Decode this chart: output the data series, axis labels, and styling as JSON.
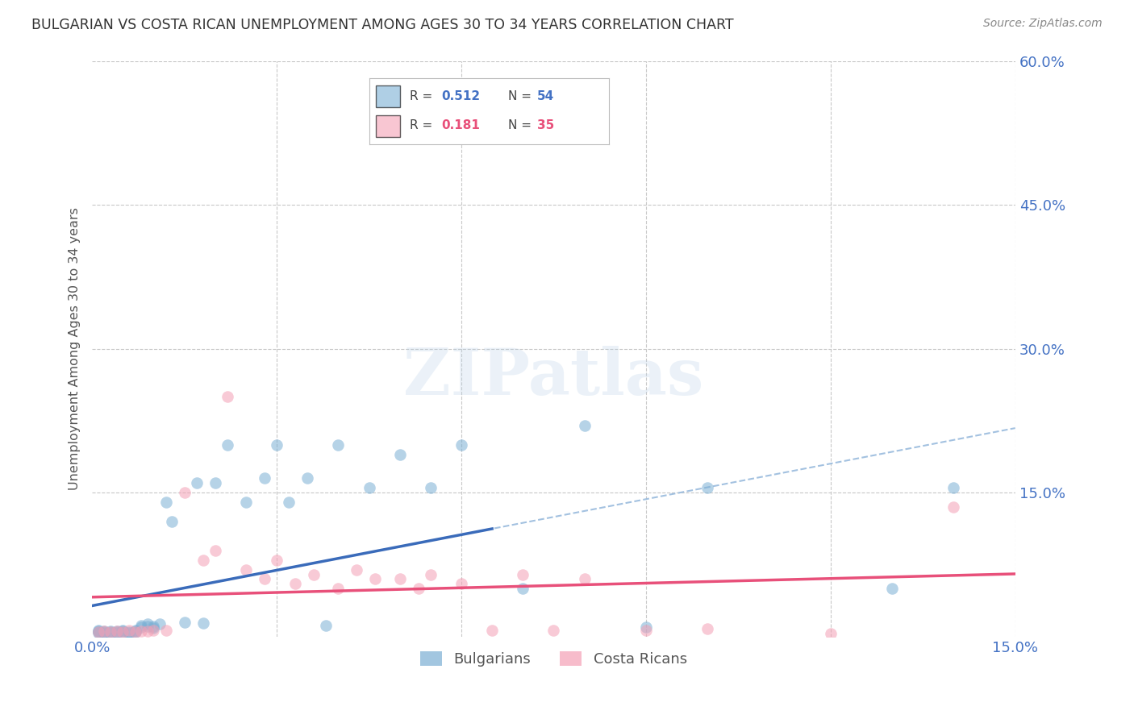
{
  "title": "BULGARIAN VS COSTA RICAN UNEMPLOYMENT AMONG AGES 30 TO 34 YEARS CORRELATION CHART",
  "source": "Source: ZipAtlas.com",
  "ylabel": "Unemployment Among Ages 30 to 34 years",
  "xlim": [
    0.0,
    0.15
  ],
  "ylim": [
    0.0,
    0.6
  ],
  "bg_color": "#ffffff",
  "grid_color": "#c8c8c8",
  "watermark_text": "ZIPatlas",
  "blue_scatter_color": "#7bafd4",
  "pink_scatter_color": "#f4a0b5",
  "blue_line_color": "#3a6bba",
  "pink_line_color": "#e8507a",
  "dashed_line_color": "#99bbdd",
  "tick_label_color": "#4472c4",
  "ylabel_color": "#555555",
  "title_color": "#333333",
  "source_color": "#888888",
  "bulgarians_x": [
    0.001,
    0.001,
    0.001,
    0.001,
    0.002,
    0.002,
    0.002,
    0.002,
    0.003,
    0.003,
    0.003,
    0.004,
    0.004,
    0.004,
    0.005,
    0.005,
    0.005,
    0.006,
    0.006,
    0.006,
    0.007,
    0.007,
    0.007,
    0.008,
    0.008,
    0.009,
    0.009,
    0.01,
    0.01,
    0.011,
    0.012,
    0.013,
    0.015,
    0.017,
    0.018,
    0.02,
    0.022,
    0.025,
    0.028,
    0.03,
    0.032,
    0.035,
    0.038,
    0.04,
    0.045,
    0.05,
    0.055,
    0.06,
    0.07,
    0.08,
    0.09,
    0.1,
    0.13,
    0.14
  ],
  "bulgarians_y": [
    0.005,
    0.006,
    0.007,
    0.004,
    0.005,
    0.006,
    0.003,
    0.004,
    0.005,
    0.006,
    0.004,
    0.005,
    0.004,
    0.006,
    0.005,
    0.006,
    0.007,
    0.004,
    0.005,
    0.003,
    0.006,
    0.005,
    0.007,
    0.01,
    0.012,
    0.011,
    0.013,
    0.009,
    0.011,
    0.013,
    0.14,
    0.12,
    0.015,
    0.16,
    0.014,
    0.16,
    0.2,
    0.14,
    0.165,
    0.2,
    0.14,
    0.165,
    0.012,
    0.2,
    0.155,
    0.19,
    0.155,
    0.2,
    0.05,
    0.22,
    0.01,
    0.155,
    0.05,
    0.155
  ],
  "costaricans_x": [
    0.001,
    0.002,
    0.003,
    0.004,
    0.005,
    0.006,
    0.007,
    0.008,
    0.009,
    0.01,
    0.012,
    0.015,
    0.018,
    0.02,
    0.022,
    0.025,
    0.028,
    0.03,
    0.033,
    0.036,
    0.04,
    0.043,
    0.046,
    0.05,
    0.053,
    0.055,
    0.06,
    0.065,
    0.07,
    0.075,
    0.08,
    0.09,
    0.1,
    0.12,
    0.14
  ],
  "costaricans_y": [
    0.005,
    0.006,
    0.005,
    0.006,
    0.005,
    0.007,
    0.005,
    0.006,
    0.006,
    0.007,
    0.007,
    0.15,
    0.08,
    0.09,
    0.25,
    0.07,
    0.06,
    0.08,
    0.055,
    0.065,
    0.05,
    0.07,
    0.06,
    0.06,
    0.05,
    0.065,
    0.055,
    0.007,
    0.065,
    0.007,
    0.06,
    0.007,
    0.008,
    0.003,
    0.135
  ],
  "x_ticks": [
    0.0,
    0.03,
    0.06,
    0.09,
    0.12,
    0.15
  ],
  "x_tick_labels": [
    "0.0%",
    "",
    "",
    "",
    "",
    "15.0%"
  ],
  "y_ticks": [
    0.0,
    0.15,
    0.3,
    0.45,
    0.6
  ],
  "y_tick_labels": [
    "",
    "15.0%",
    "30.0%",
    "45.0%",
    "60.0%"
  ]
}
